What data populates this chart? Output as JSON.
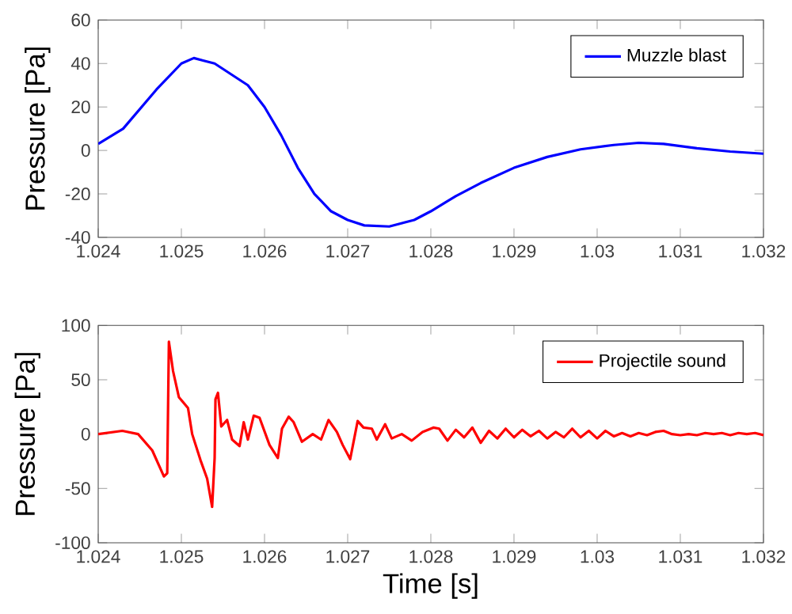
{
  "chart_data": [
    {
      "type": "line",
      "ylabel": "Pressure [Pa]",
      "xlim": [
        1.024,
        1.032
      ],
      "ylim": [
        -40,
        60
      ],
      "xticks": [
        1.024,
        1.025,
        1.026,
        1.027,
        1.028,
        1.029,
        1.03,
        1.031,
        1.032
      ],
      "yticks": [
        -40,
        -20,
        0,
        20,
        40,
        60
      ],
      "legend": "top right",
      "x": [
        1.024,
        1.0243,
        1.0247,
        1.025,
        1.02515,
        1.0254,
        1.0258,
        1.026,
        1.0262,
        1.0264,
        1.0266,
        1.0268,
        1.027,
        1.0272,
        1.0275,
        1.0278,
        1.028,
        1.0283,
        1.0286,
        1.029,
        1.0294,
        1.0298,
        1.0302,
        1.0305,
        1.0308,
        1.0312,
        1.0316,
        1.032
      ],
      "series": [
        {
          "name": "Muzzle blast",
          "color": "#0000ff",
          "values": [
            3,
            10,
            28,
            40,
            42.5,
            40,
            30,
            20,
            7,
            -8,
            -20,
            -28,
            -32,
            -34.5,
            -35,
            -32,
            -28,
            -21,
            -15,
            -8,
            -3,
            0.5,
            2.5,
            3.5,
            3,
            1,
            -0.5,
            -1.5
          ]
        }
      ]
    },
    {
      "type": "line",
      "xlabel": "Time [s]",
      "ylabel": "Pressure [Pa]",
      "xlim": [
        1.024,
        1.032
      ],
      "ylim": [
        -100,
        100
      ],
      "xticks": [
        1.024,
        1.025,
        1.026,
        1.027,
        1.028,
        1.029,
        1.03,
        1.031,
        1.032
      ],
      "yticks": [
        -100,
        -50,
        0,
        50,
        100
      ],
      "legend": "top right",
      "x": [
        1.024,
        1.02429,
        1.02448,
        1.02465,
        1.02479,
        1.02483,
        1.02485,
        1.0249,
        1.02497,
        1.02508,
        1.02513,
        1.02523,
        1.02531,
        1.02537,
        1.0254,
        1.02541,
        1.02544,
        1.02548,
        1.02555,
        1.02561,
        1.0257,
        1.02575,
        1.0258,
        1.02587,
        1.02594,
        1.02606,
        1.02616,
        1.02621,
        1.02629,
        1.02635,
        1.02645,
        1.02658,
        1.02668,
        1.02677,
        1.02687,
        1.02694,
        1.02703,
        1.02712,
        1.02719,
        1.02729,
        1.02735,
        1.02745,
        1.02753,
        1.02765,
        1.02777,
        1.0279,
        1.02803,
        1.0281,
        1.0282,
        1.0283,
        1.0284,
        1.0285,
        1.0286,
        1.0287,
        1.0288,
        1.0289,
        1.029,
        1.0291,
        1.0292,
        1.0293,
        1.0294,
        1.0295,
        1.0296,
        1.0297,
        1.0298,
        1.0299,
        1.03,
        1.0301,
        1.0302,
        1.0303,
        1.0304,
        1.0305,
        1.0306,
        1.0307,
        1.0308,
        1.0309,
        1.031,
        1.0311,
        1.0312,
        1.0313,
        1.0314,
        1.0315,
        1.0316,
        1.0317,
        1.0318,
        1.0319,
        1.032
      ],
      "series": [
        {
          "name": "Projectile sound",
          "color": "#ff0000",
          "values": [
            0,
            3,
            0,
            -15,
            -39,
            -36,
            85,
            58,
            34,
            24,
            0,
            -24,
            -41,
            -67,
            -22,
            32,
            38,
            7,
            13,
            -5,
            -11,
            11,
            -5,
            17,
            15,
            -10,
            -22,
            5,
            16,
            11,
            -7,
            0,
            -5,
            13,
            2,
            -10,
            -23,
            12,
            6,
            5,
            -5,
            9,
            -4,
            0,
            -6,
            2,
            6,
            5,
            -6,
            4,
            -3,
            6,
            -8,
            3,
            -4,
            5,
            -3,
            4,
            -2,
            3,
            -4,
            2,
            -3,
            5,
            -3,
            3,
            -4,
            3,
            -2,
            1,
            -2,
            1,
            -1,
            2,
            3,
            0,
            -1,
            0,
            -1,
            1,
            0,
            1,
            -1,
            1,
            0,
            1,
            -1
          ]
        }
      ]
    }
  ]
}
